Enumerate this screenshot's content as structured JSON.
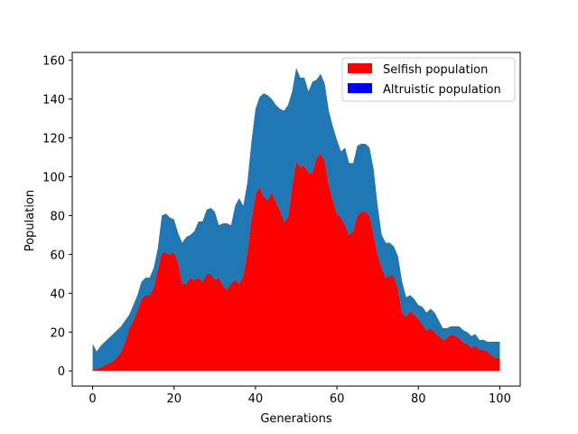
{
  "chart_data": {
    "type": "area",
    "stacked": true,
    "title": "",
    "xlabel": "Generations",
    "ylabel": "Population",
    "xlim": [
      -5,
      105
    ],
    "ylim": [
      -7.8,
      164
    ],
    "xticks": [
      0,
      20,
      40,
      60,
      80,
      100
    ],
    "yticks": [
      0,
      20,
      40,
      60,
      80,
      100,
      120,
      140,
      160
    ],
    "x": [
      0,
      1,
      2,
      3,
      4,
      5,
      6,
      7,
      8,
      9,
      10,
      11,
      12,
      13,
      14,
      15,
      16,
      17,
      18,
      19,
      20,
      21,
      22,
      23,
      24,
      25,
      26,
      27,
      28,
      29,
      30,
      31,
      32,
      33,
      34,
      35,
      36,
      37,
      38,
      39,
      40,
      41,
      42,
      43,
      44,
      45,
      46,
      47,
      48,
      49,
      50,
      51,
      52,
      53,
      54,
      55,
      56,
      57,
      58,
      59,
      60,
      61,
      62,
      63,
      64,
      65,
      66,
      67,
      68,
      69,
      70,
      71,
      72,
      73,
      74,
      75,
      76,
      77,
      78,
      79,
      80,
      81,
      82,
      83,
      84,
      85,
      86,
      87,
      88,
      89,
      90,
      91,
      92,
      93,
      94,
      95,
      96,
      97,
      98,
      99,
      100
    ],
    "series": [
      {
        "name": "Selfish population",
        "color": "#ff0000",
        "values": [
          1,
          1,
          2,
          3,
          4,
          5,
          7,
          10,
          15,
          22,
          26,
          31,
          37,
          39,
          39,
          43,
          52,
          61,
          61,
          60,
          61,
          56,
          45,
          45,
          48,
          47,
          48,
          46,
          50,
          50,
          47,
          48,
          44,
          42,
          45,
          47,
          45,
          49,
          61,
          78,
          91,
          95,
          90,
          88,
          92,
          87,
          83,
          77,
          79,
          95,
          108,
          105,
          106,
          102,
          102,
          110,
          112,
          108,
          96,
          88,
          81,
          79,
          75,
          70,
          72,
          80,
          82,
          82,
          80,
          70,
          60,
          53,
          48,
          49,
          49,
          42,
          30,
          28,
          31,
          29,
          27,
          24,
          21,
          22,
          20,
          18,
          16,
          17,
          19,
          18,
          17,
          15,
          14,
          12,
          13,
          11,
          11,
          10,
          8,
          7,
          7
        ]
      },
      {
        "name": "Altruistic population",
        "color": "#1f77b4",
        "legend_color": "#0000ff",
        "values": [
          13,
          9,
          11,
          12,
          13,
          14,
          14,
          13,
          11,
          7,
          8,
          8,
          9,
          9,
          9,
          10,
          11,
          19,
          20,
          19,
          17,
          15,
          21,
          24,
          22,
          25,
          29,
          31,
          33,
          34,
          35,
          27,
          32,
          34,
          30,
          38,
          44,
          36,
          36,
          40,
          44,
          46,
          53,
          54,
          48,
          50,
          52,
          57,
          58,
          49,
          48,
          46,
          45,
          42,
          47,
          40,
          41,
          40,
          38,
          38,
          38,
          34,
          40,
          37,
          35,
          36,
          35,
          35,
          35,
          34,
          25,
          17,
          18,
          17,
          15,
          17,
          16,
          10,
          8,
          8,
          7,
          9,
          9,
          10,
          10,
          8,
          6,
          5,
          4,
          5,
          6,
          6,
          6,
          6,
          6,
          5,
          5,
          5,
          7,
          8,
          8
        ]
      }
    ],
    "legend_location": "top-right",
    "legend": [
      "Selfish population",
      "Altruistic population"
    ]
  }
}
